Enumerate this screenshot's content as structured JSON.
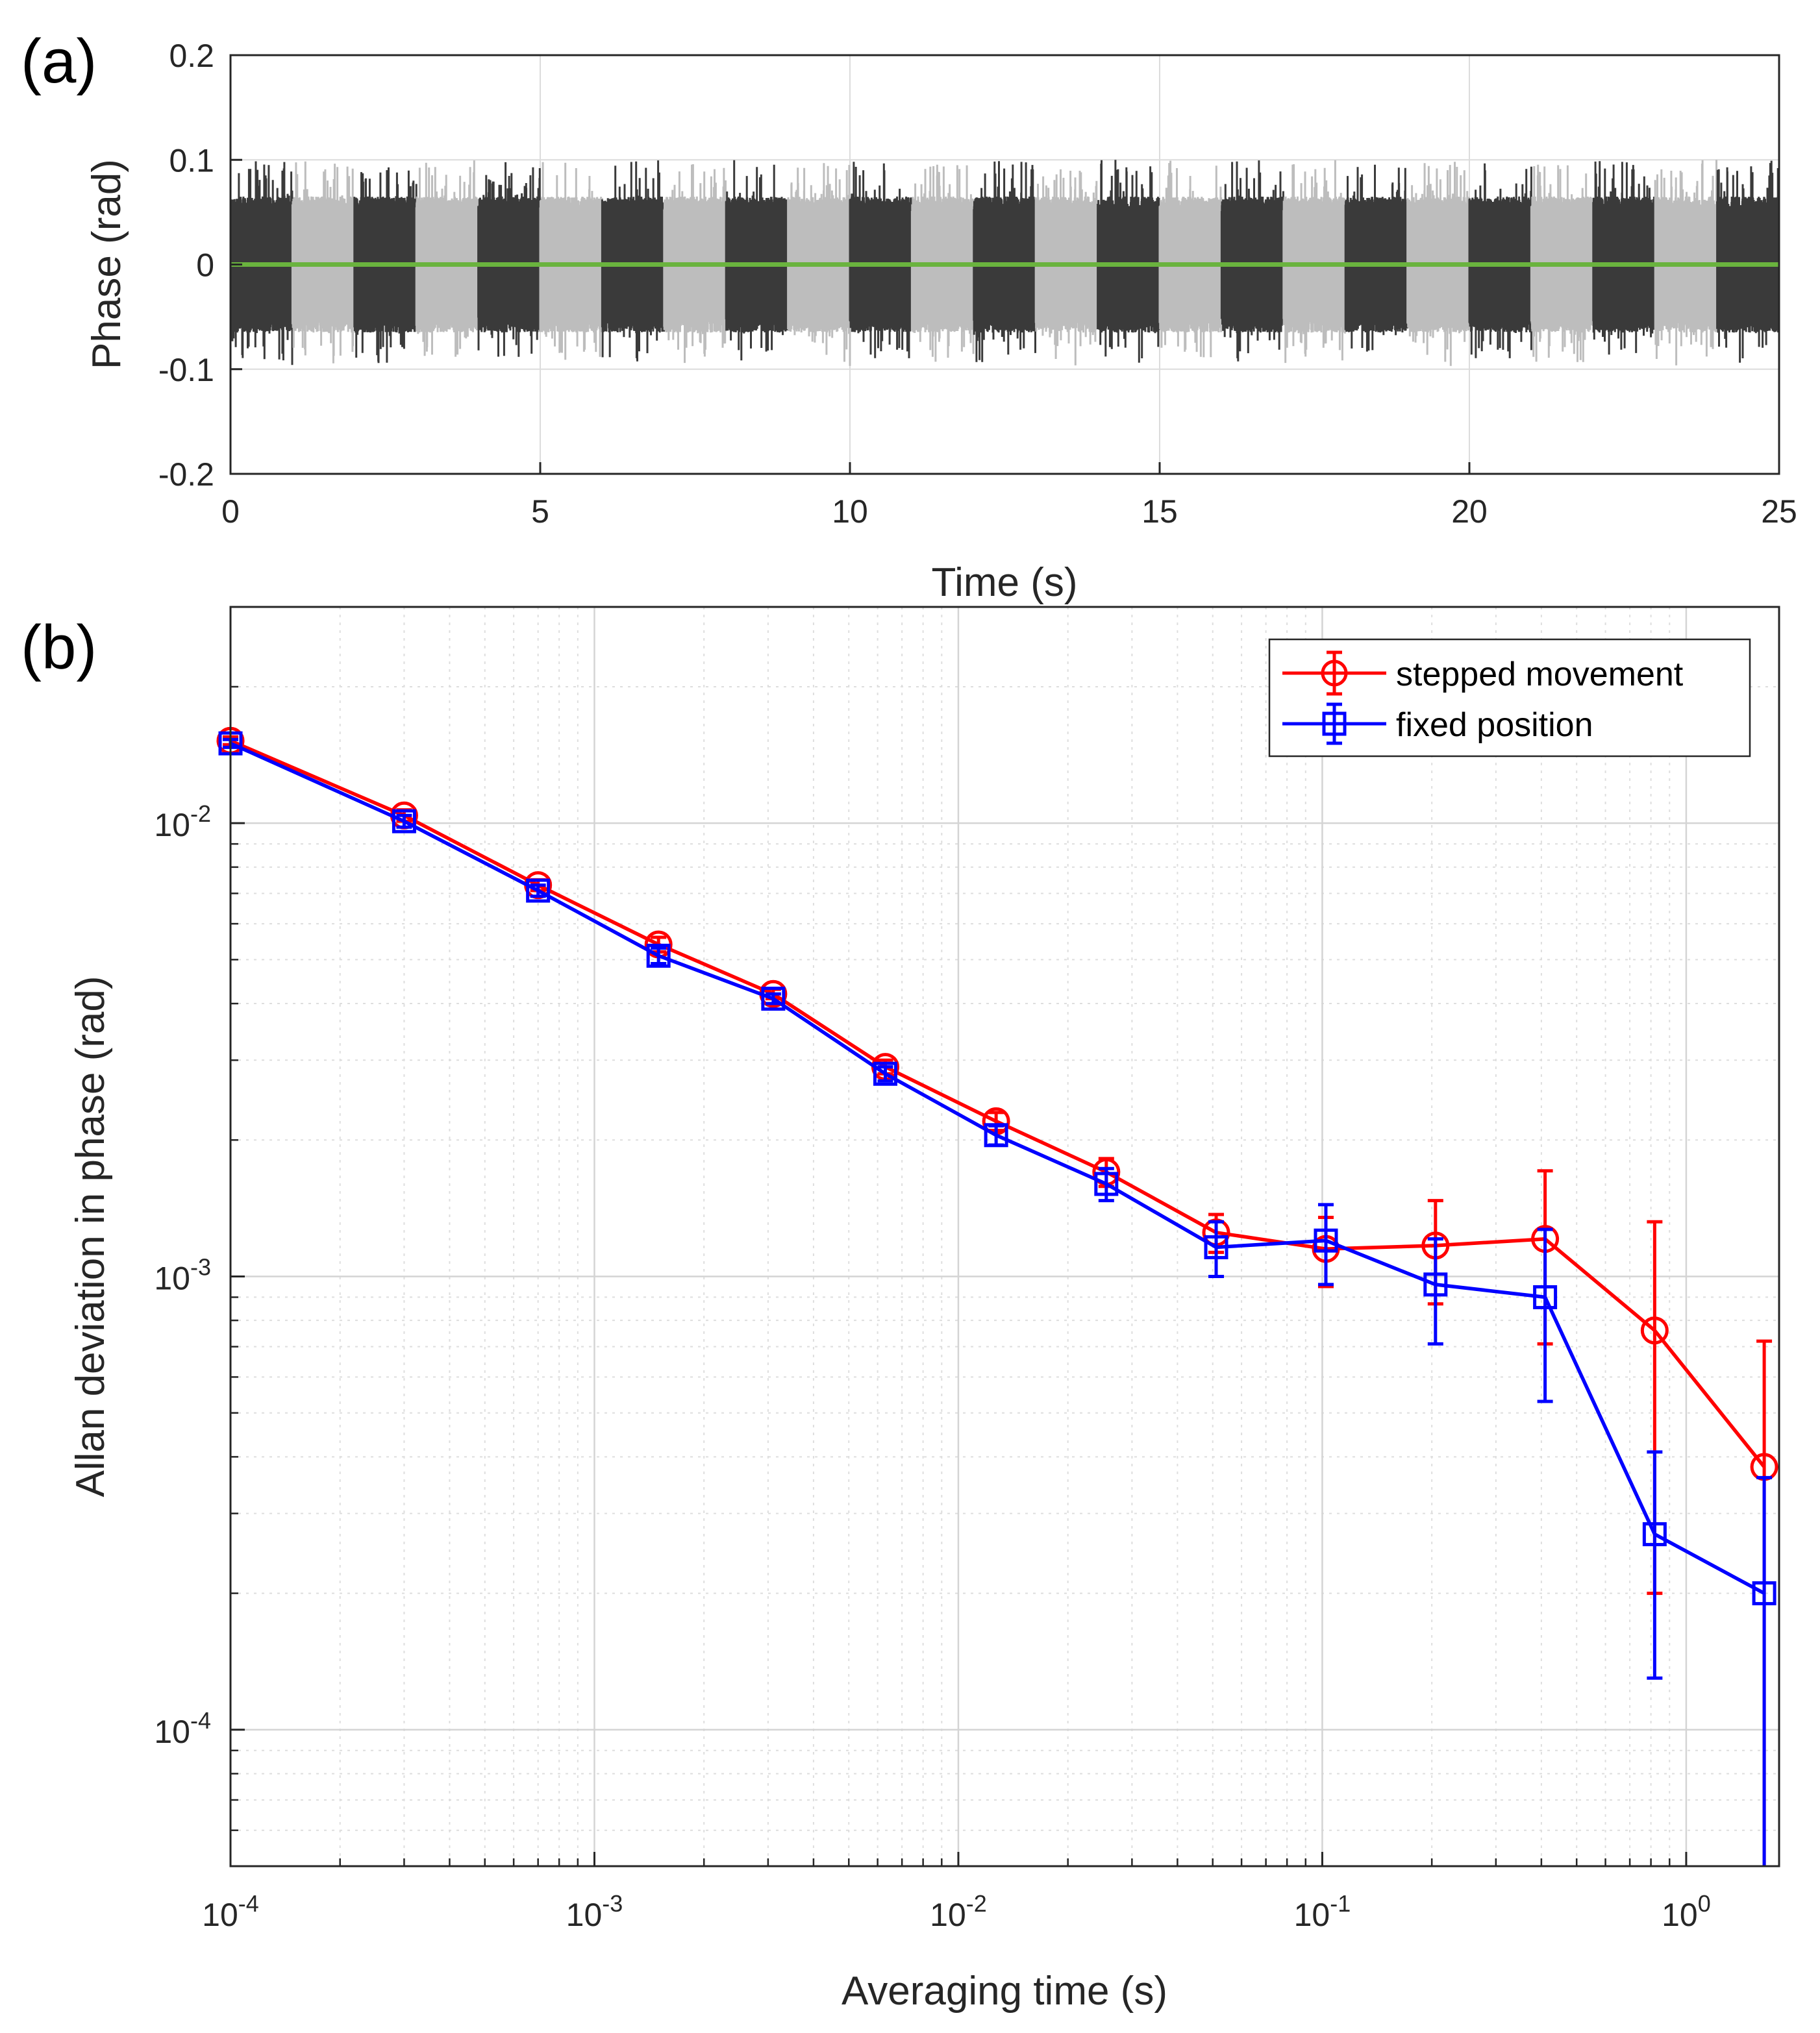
{
  "chart_data": [
    {
      "panel": "(a)",
      "type": "line",
      "xlabel": "Time (s)",
      "ylabel": "Phase (rad)",
      "xlim": [
        0,
        25
      ],
      "ylim": [
        -0.2,
        0.2
      ],
      "xticks": [
        0,
        5,
        10,
        15,
        20,
        25
      ],
      "xtick_labels": [
        "0",
        "5",
        "10",
        "15",
        "20",
        "25"
      ],
      "yticks": [
        0.2,
        0.1,
        0,
        -0.1,
        -0.2
      ],
      "ytick_labels": [
        "0.2",
        "0.1",
        "0",
        "-0.1",
        "-0.2"
      ],
      "grid": true,
      "segment_length_s": 1,
      "segment_colors": [
        "#3a3a3a",
        "#bdbdbd"
      ],
      "noise_amplitude_rad": 0.065,
      "peak_amplitude_rad": 0.1,
      "mean_line": {
        "value": 0,
        "color": "#6ab33e"
      }
    },
    {
      "panel": "(b)",
      "type": "line",
      "scale": "loglog",
      "xlabel": "Averaging time (s)",
      "ylabel": "Allan deviation in phase (rad)",
      "xlim": [
        0.0001,
        1.8
      ],
      "ylim": [
        5e-05,
        0.03
      ],
      "xticks": [
        0.0001,
        0.001,
        0.01,
        0.1,
        1
      ],
      "xtick_labels": [
        {
          "base": "10",
          "exp": "-4"
        },
        {
          "base": "10",
          "exp": "-3"
        },
        {
          "base": "10",
          "exp": "-2"
        },
        {
          "base": "10",
          "exp": "-1"
        },
        {
          "base": "10",
          "exp": "0"
        }
      ],
      "yticks": [
        0.01,
        0.001,
        0.0001
      ],
      "ytick_labels": [
        {
          "base": "10",
          "exp": "-2"
        },
        {
          "base": "10",
          "exp": "-3"
        },
        {
          "base": "10",
          "exp": "-4"
        }
      ],
      "grid": true,
      "legend_position": "top-right",
      "x": [
        0.0001,
        0.0003,
        0.0007,
        0.0015,
        0.0031,
        0.0063,
        0.0127,
        0.0255,
        0.0511,
        0.1023,
        0.2047,
        0.4095,
        0.8191,
        1.6383
      ],
      "series": [
        {
          "name": "stepped movement",
          "color": "#ff0000",
          "marker": "circle",
          "values": [
            0.0152,
            0.0104,
            0.0073,
            0.0054,
            0.0042,
            0.0029,
            0.0022,
            0.0017,
            0.00125,
            0.00115,
            0.00117,
            0.00121,
            0.00076,
            0.00038
          ],
          "errors": [
            0.0003,
            0.0003,
            0.0002,
            0.0002,
            0.0001,
            0.0001,
            0.0001,
            0.00012,
            0.00012,
            0.0002,
            0.0003,
            0.0005,
            0.00056,
            0.00034
          ]
        },
        {
          "name": "fixed position",
          "color": "#0000ff",
          "marker": "square",
          "values": [
            0.015,
            0.0101,
            0.0071,
            0.0051,
            0.0041,
            0.0028,
            0.00205,
            0.0016,
            0.00116,
            0.0012,
            0.00096,
            0.0009,
            0.00027,
            0.0002
          ],
          "errors": [
            0.0003,
            0.0003,
            0.0002,
            0.0002,
            0.0001,
            0.0001,
            0.0001,
            0.00013,
            0.00016,
            0.00024,
            0.00025,
            0.00037,
            0.00014,
            0.00016
          ]
        }
      ]
    }
  ]
}
